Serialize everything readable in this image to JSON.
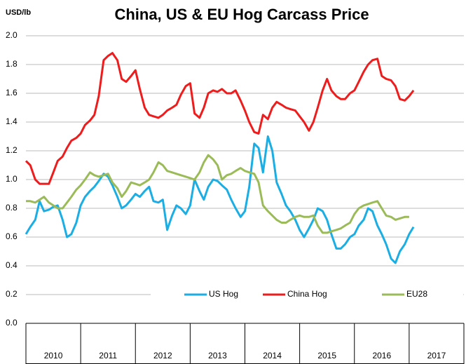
{
  "chart_data": {
    "type": "line",
    "title": "China, US & EU Hog Carcass Price",
    "y_label": "USD/lb",
    "x": [
      2010,
      2010.08,
      2010.17,
      2010.25,
      2010.33,
      2010.42,
      2010.5,
      2010.58,
      2010.67,
      2010.75,
      2010.83,
      2010.92,
      2011,
      2011.08,
      2011.17,
      2011.25,
      2011.33,
      2011.42,
      2011.5,
      2011.58,
      2011.67,
      2011.75,
      2011.83,
      2011.92,
      2012,
      2012.08,
      2012.17,
      2012.25,
      2012.33,
      2012.42,
      2012.5,
      2012.58,
      2012.67,
      2012.75,
      2012.83,
      2012.92,
      2013,
      2013.08,
      2013.17,
      2013.25,
      2013.33,
      2013.42,
      2013.5,
      2013.58,
      2013.67,
      2013.75,
      2013.83,
      2013.92,
      2014,
      2014.08,
      2014.17,
      2014.25,
      2014.33,
      2014.42,
      2014.5,
      2014.58,
      2014.67,
      2014.75,
      2014.83,
      2014.92,
      2015,
      2015.08,
      2015.17,
      2015.25,
      2015.33,
      2015.42,
      2015.5,
      2015.58,
      2015.67,
      2015.75,
      2015.83,
      2015.92,
      2016,
      2016.08,
      2016.17,
      2016.25,
      2016.33,
      2016.42,
      2016.5,
      2016.58,
      2016.67,
      2016.75,
      2016.83,
      2016.92,
      2017,
      2017.08
    ],
    "series": [
      {
        "name": "US Hog",
        "color": "#1aaee4",
        "values": [
          0.62,
          0.67,
          0.72,
          0.85,
          0.78,
          0.79,
          0.81,
          0.82,
          0.72,
          0.6,
          0.62,
          0.7,
          0.82,
          0.88,
          0.92,
          0.95,
          0.99,
          1.04,
          1.02,
          0.96,
          0.88,
          0.8,
          0.82,
          0.86,
          0.9,
          0.88,
          0.92,
          0.95,
          0.85,
          0.84,
          0.86,
          0.65,
          0.75,
          0.82,
          0.8,
          0.76,
          0.82,
          1.0,
          0.92,
          0.86,
          0.95,
          1.0,
          0.99,
          0.96,
          0.93,
          0.86,
          0.8,
          0.74,
          0.78,
          0.95,
          1.25,
          1.22,
          1.05,
          1.3,
          1.2,
          0.98,
          0.9,
          0.82,
          0.78,
          0.72,
          0.65,
          0.6,
          0.66,
          0.72,
          0.8,
          0.78,
          0.72,
          0.62,
          0.52,
          0.52,
          0.55,
          0.6,
          0.62,
          0.68,
          0.72,
          0.8,
          0.78,
          0.68,
          0.62,
          0.55,
          0.45,
          0.42,
          0.5,
          0.55,
          0.62,
          0.67
        ]
      },
      {
        "name": "China Hog",
        "color": "#ee1c1c",
        "values": [
          1.13,
          1.1,
          1.0,
          0.97,
          0.97,
          0.97,
          1.05,
          1.13,
          1.16,
          1.22,
          1.27,
          1.29,
          1.32,
          1.38,
          1.41,
          1.45,
          1.58,
          1.83,
          1.86,
          1.88,
          1.83,
          1.7,
          1.68,
          1.72,
          1.76,
          1.63,
          1.5,
          1.45,
          1.44,
          1.43,
          1.45,
          1.48,
          1.5,
          1.52,
          1.59,
          1.65,
          1.67,
          1.46,
          1.43,
          1.5,
          1.6,
          1.62,
          1.61,
          1.63,
          1.6,
          1.6,
          1.62,
          1.55,
          1.48,
          1.4,
          1.33,
          1.32,
          1.45,
          1.42,
          1.5,
          1.54,
          1.52,
          1.5,
          1.49,
          1.48,
          1.44,
          1.4,
          1.34,
          1.4,
          1.5,
          1.62,
          1.7,
          1.62,
          1.58,
          1.56,
          1.56,
          1.6,
          1.62,
          1.68,
          1.75,
          1.8,
          1.83,
          1.84,
          1.72,
          1.7,
          1.69,
          1.65,
          1.56,
          1.55,
          1.58,
          1.62
        ]
      },
      {
        "name": "EU28",
        "color": "#9bbb59",
        "values": [
          0.85,
          0.85,
          0.84,
          0.86,
          0.88,
          0.84,
          0.82,
          0.8,
          0.8,
          0.84,
          0.88,
          0.93,
          0.96,
          1.0,
          1.05,
          1.03,
          1.02,
          1.03,
          1.04,
          0.98,
          0.94,
          0.88,
          0.92,
          0.98,
          0.97,
          0.96,
          0.98,
          1.0,
          1.05,
          1.12,
          1.1,
          1.06,
          1.05,
          1.04,
          1.03,
          1.02,
          1.01,
          1.0,
          1.05,
          1.12,
          1.17,
          1.14,
          1.1,
          1.0,
          1.03,
          1.04,
          1.06,
          1.08,
          1.06,
          1.05,
          1.04,
          0.98,
          0.82,
          0.78,
          0.75,
          0.72,
          0.7,
          0.7,
          0.72,
          0.74,
          0.75,
          0.74,
          0.74,
          0.75,
          0.68,
          0.63,
          0.63,
          0.64,
          0.65,
          0.66,
          0.68,
          0.7,
          0.76,
          0.8,
          0.82,
          0.83,
          0.84,
          0.85,
          0.8,
          0.75,
          0.74,
          0.72,
          0.73,
          0.74,
          0.74,
          null
        ]
      }
    ],
    "xlim": [
      2010,
      2018
    ],
    "xticks": [
      2010,
      2011,
      2012,
      2013,
      2014,
      2015,
      2016,
      2017
    ],
    "ylim": [
      0,
      2
    ],
    "yticks": [
      {
        "value": 0,
        "label": "0.0"
      },
      0.2,
      0.4,
      0.6,
      0.8,
      {
        "value": 1,
        "label": "1.0"
      },
      1.2,
      1.4,
      1.6,
      1.8,
      {
        "value": 2,
        "label": "2.0"
      }
    ],
    "grid": true,
    "legend": "bottom"
  }
}
